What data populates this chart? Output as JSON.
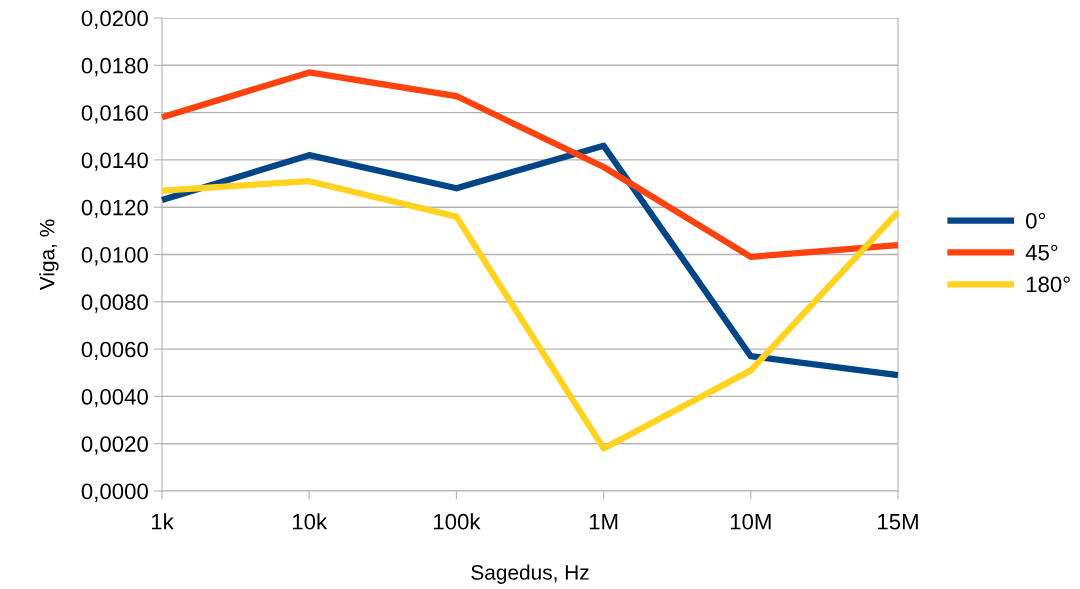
{
  "chart_data": {
    "type": "line",
    "xlabel": "Sagedus, Hz",
    "ylabel": "Viga, %",
    "categories": [
      "1k",
      "10k",
      "100k",
      "1M",
      "10M",
      "15M"
    ],
    "series": [
      {
        "name": "0°",
        "color": "#004586",
        "values": [
          0.0123,
          0.0142,
          0.0128,
          0.0146,
          0.0057,
          0.0049
        ]
      },
      {
        "name": "45°",
        "color": "#ff420e",
        "values": [
          0.0158,
          0.0177,
          0.0167,
          0.0137,
          0.0099,
          0.0104
        ]
      },
      {
        "name": "180°",
        "color": "#ffd320",
        "values": [
          0.0127,
          0.0131,
          0.0116,
          0.0018,
          0.0051,
          0.0118
        ]
      }
    ],
    "ylim": [
      0,
      0.02
    ],
    "yticks": [
      {
        "value": 0,
        "label": "0,0000"
      },
      {
        "value": 0.002,
        "label": "0,0020"
      },
      {
        "value": 0.004,
        "label": "0,0040"
      },
      {
        "value": 0.006,
        "label": "0,0060"
      },
      {
        "value": 0.008,
        "label": "0,0080"
      },
      {
        "value": 0.01,
        "label": "0,0100"
      },
      {
        "value": 0.012,
        "label": "0,0120"
      },
      {
        "value": 0.014,
        "label": "0,0140"
      },
      {
        "value": 0.016,
        "label": "0,0160"
      },
      {
        "value": 0.018,
        "label": "0,0180"
      },
      {
        "value": 0.02,
        "label": "0,0200"
      }
    ],
    "grid": "y",
    "legend": "right",
    "marker": "none",
    "line_style": "solid"
  }
}
